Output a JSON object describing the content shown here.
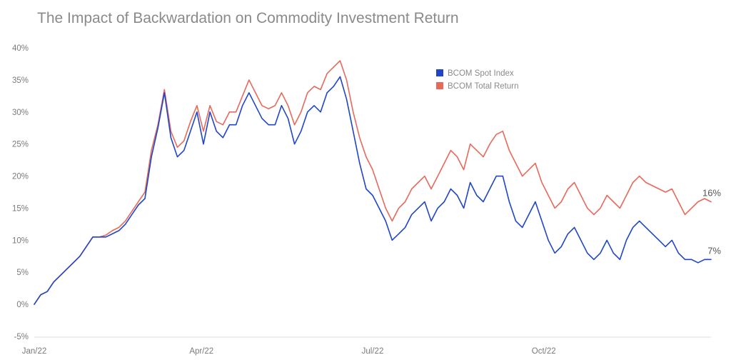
{
  "chart_data": {
    "type": "line",
    "title": "The Impact of Backwardation on Commodity Investment Return",
    "xlabel": "",
    "ylabel": "",
    "ylim": [
      -5,
      40
    ],
    "yticks": [
      -5,
      0,
      5,
      10,
      15,
      20,
      25,
      30,
      35,
      40
    ],
    "y_format": "percent",
    "xlim": [
      0,
      104
    ],
    "xticks": [
      {
        "x": 0,
        "label": "Jan/22"
      },
      {
        "x": 25.7,
        "label": "Apr/22"
      },
      {
        "x": 52.0,
        "label": "Jul/22"
      },
      {
        "x": 78.3,
        "label": "Oct/22"
      }
    ],
    "x_unit": "weeks since Jan/22",
    "grid": false,
    "legend_position": "top-center",
    "series": [
      {
        "name": "BCOM Spot Index",
        "color": "#1f45c9",
        "end_label": "7%",
        "x": [
          0,
          1,
          2,
          3,
          4,
          5,
          6,
          7,
          8,
          9,
          10,
          11,
          12,
          13,
          14,
          15,
          16,
          17,
          18,
          19,
          20,
          21,
          22,
          23,
          24,
          25,
          26,
          27,
          28,
          29,
          30,
          31,
          32,
          33,
          34,
          35,
          36,
          37,
          38,
          39,
          40,
          41,
          42,
          43,
          44,
          45,
          46,
          47,
          48,
          49,
          50,
          51,
          52,
          53,
          54,
          55,
          56,
          57,
          58,
          59,
          60,
          61,
          62,
          63,
          64,
          65,
          66,
          67,
          68,
          69,
          70,
          71,
          72,
          73,
          74,
          75,
          76,
          77,
          78,
          79,
          80,
          81,
          82,
          83,
          84,
          85,
          86,
          87,
          88,
          89,
          90,
          91,
          92,
          93,
          94,
          95,
          96,
          97,
          98,
          99,
          100,
          101,
          102,
          103,
          104
        ],
        "y": [
          0,
          1.5,
          2,
          3.5,
          4.5,
          5.5,
          6.5,
          7.5,
          9,
          10.5,
          10.5,
          10.5,
          11,
          11.5,
          12.5,
          14,
          15.5,
          16.5,
          23,
          27.5,
          33,
          26,
          23,
          24,
          27,
          30,
          25,
          30,
          27,
          26,
          28,
          28,
          31,
          33,
          31,
          29,
          28,
          28,
          31,
          29,
          25,
          27,
          30,
          31,
          30,
          33,
          34,
          35.5,
          32,
          27,
          22,
          18,
          17,
          15,
          13,
          10,
          11,
          12,
          14,
          15,
          16,
          13,
          15,
          16,
          18,
          17,
          15,
          19,
          17,
          16,
          18,
          20,
          20,
          16,
          13,
          12,
          14,
          16,
          13,
          10,
          8,
          9,
          11,
          12,
          10,
          8,
          7,
          8,
          10,
          8,
          7,
          10,
          12,
          13,
          12,
          11,
          10,
          9,
          10,
          8,
          7,
          7,
          6.5,
          7,
          7
        ]
      },
      {
        "name": "BCOM Total Return",
        "color": "#e8695a",
        "end_label": "16%",
        "x": [
          0,
          1,
          2,
          3,
          4,
          5,
          6,
          7,
          8,
          9,
          10,
          11,
          12,
          13,
          14,
          15,
          16,
          17,
          18,
          19,
          20,
          21,
          22,
          23,
          24,
          25,
          26,
          27,
          28,
          29,
          30,
          31,
          32,
          33,
          34,
          35,
          36,
          37,
          38,
          39,
          40,
          41,
          42,
          43,
          44,
          45,
          46,
          47,
          48,
          49,
          50,
          51,
          52,
          53,
          54,
          55,
          56,
          57,
          58,
          59,
          60,
          61,
          62,
          63,
          64,
          65,
          66,
          67,
          68,
          69,
          70,
          71,
          72,
          73,
          74,
          75,
          76,
          77,
          78,
          79,
          80,
          81,
          82,
          83,
          84,
          85,
          86,
          87,
          88,
          89,
          90,
          91,
          92,
          93,
          94,
          95,
          96,
          97,
          98,
          99,
          100,
          101,
          102,
          103,
          104
        ],
        "y": [
          0,
          1.5,
          2,
          3.5,
          4.5,
          5.5,
          6.5,
          7.5,
          9,
          10.5,
          10.5,
          10.8,
          11.5,
          12,
          13,
          14.5,
          16,
          17.5,
          24,
          28,
          33.5,
          27,
          24.5,
          25.5,
          28.5,
          31,
          27,
          31,
          28.5,
          28,
          30,
          30,
          32.5,
          35,
          33,
          31,
          30.5,
          31,
          33,
          31,
          28,
          30,
          33,
          34,
          33.5,
          36,
          37,
          38,
          35,
          30,
          26,
          23,
          21,
          18,
          15,
          13,
          15,
          16,
          18,
          19,
          20,
          18,
          20,
          22,
          24,
          23,
          21,
          25,
          24,
          23,
          25,
          26.5,
          27,
          24,
          22,
          20,
          21,
          22,
          19,
          17,
          15,
          16,
          18,
          19,
          17,
          15,
          14,
          15,
          17,
          16,
          15,
          17,
          19,
          20,
          19,
          18.5,
          18,
          17.5,
          18,
          16,
          14,
          15,
          16,
          16.5,
          16
        ]
      }
    ]
  }
}
